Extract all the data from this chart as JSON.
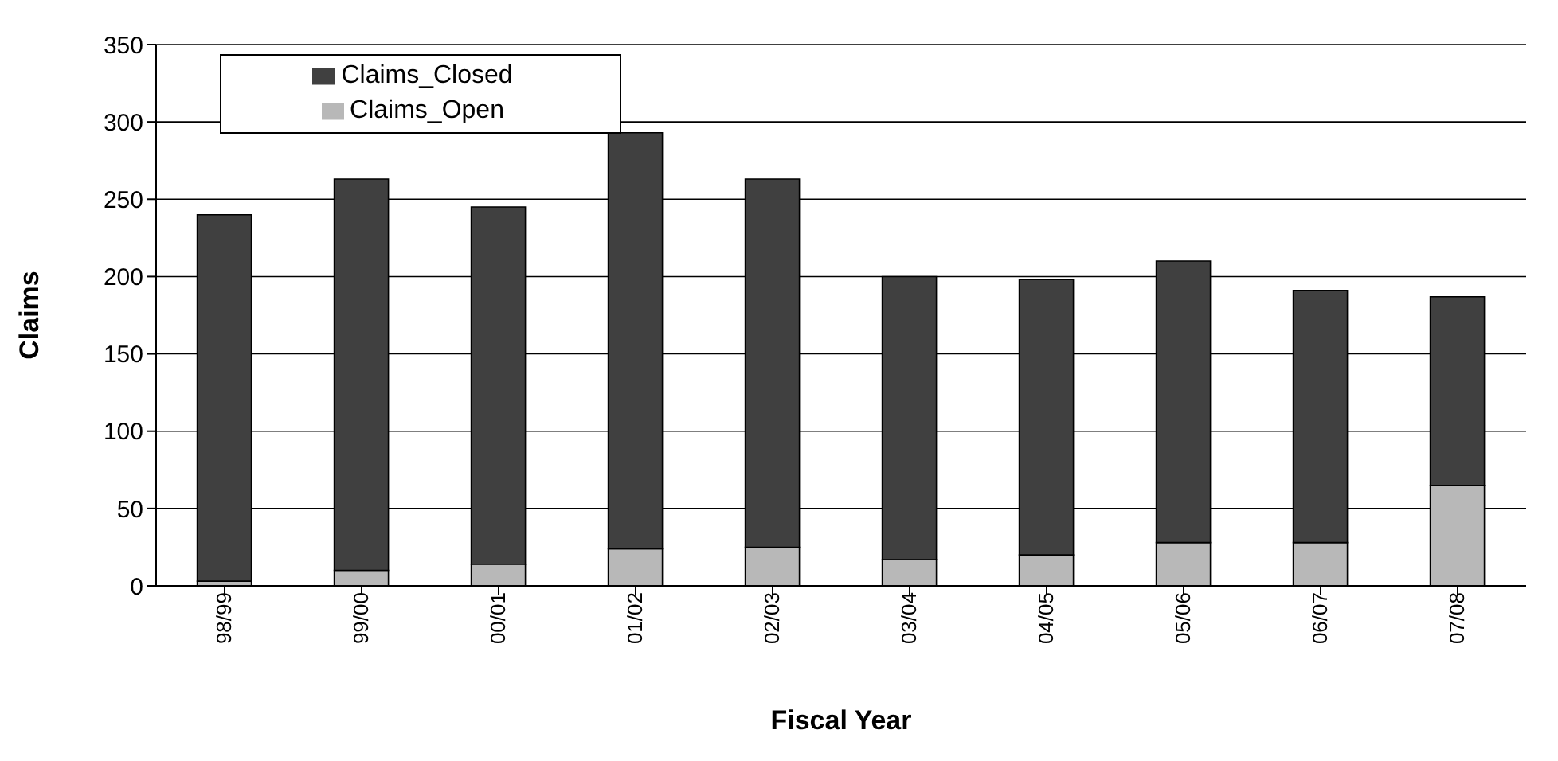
{
  "chart_data": {
    "type": "bar",
    "stacked": true,
    "xlabel": "Fiscal Year",
    "ylabel": "Claims",
    "categories": [
      "98/99",
      "99/00",
      "00/01",
      "01/02",
      "02/03",
      "03/04",
      "04/05",
      "05/06",
      "06/07",
      "07/08"
    ],
    "series": [
      {
        "name": "Claims_Open",
        "color": "#b8b8b8",
        "values": [
          3,
          10,
          14,
          24,
          25,
          17,
          20,
          28,
          28,
          65
        ]
      },
      {
        "name": "Claims_Closed",
        "color": "#404040",
        "values": [
          237,
          253,
          231,
          269,
          238,
          183,
          178,
          182,
          163,
          122
        ]
      }
    ],
    "ylim": [
      0,
      350
    ],
    "yticks": [
      0,
      50,
      100,
      150,
      200,
      250,
      300,
      350
    ],
    "grid": "y",
    "legend": "top left"
  }
}
